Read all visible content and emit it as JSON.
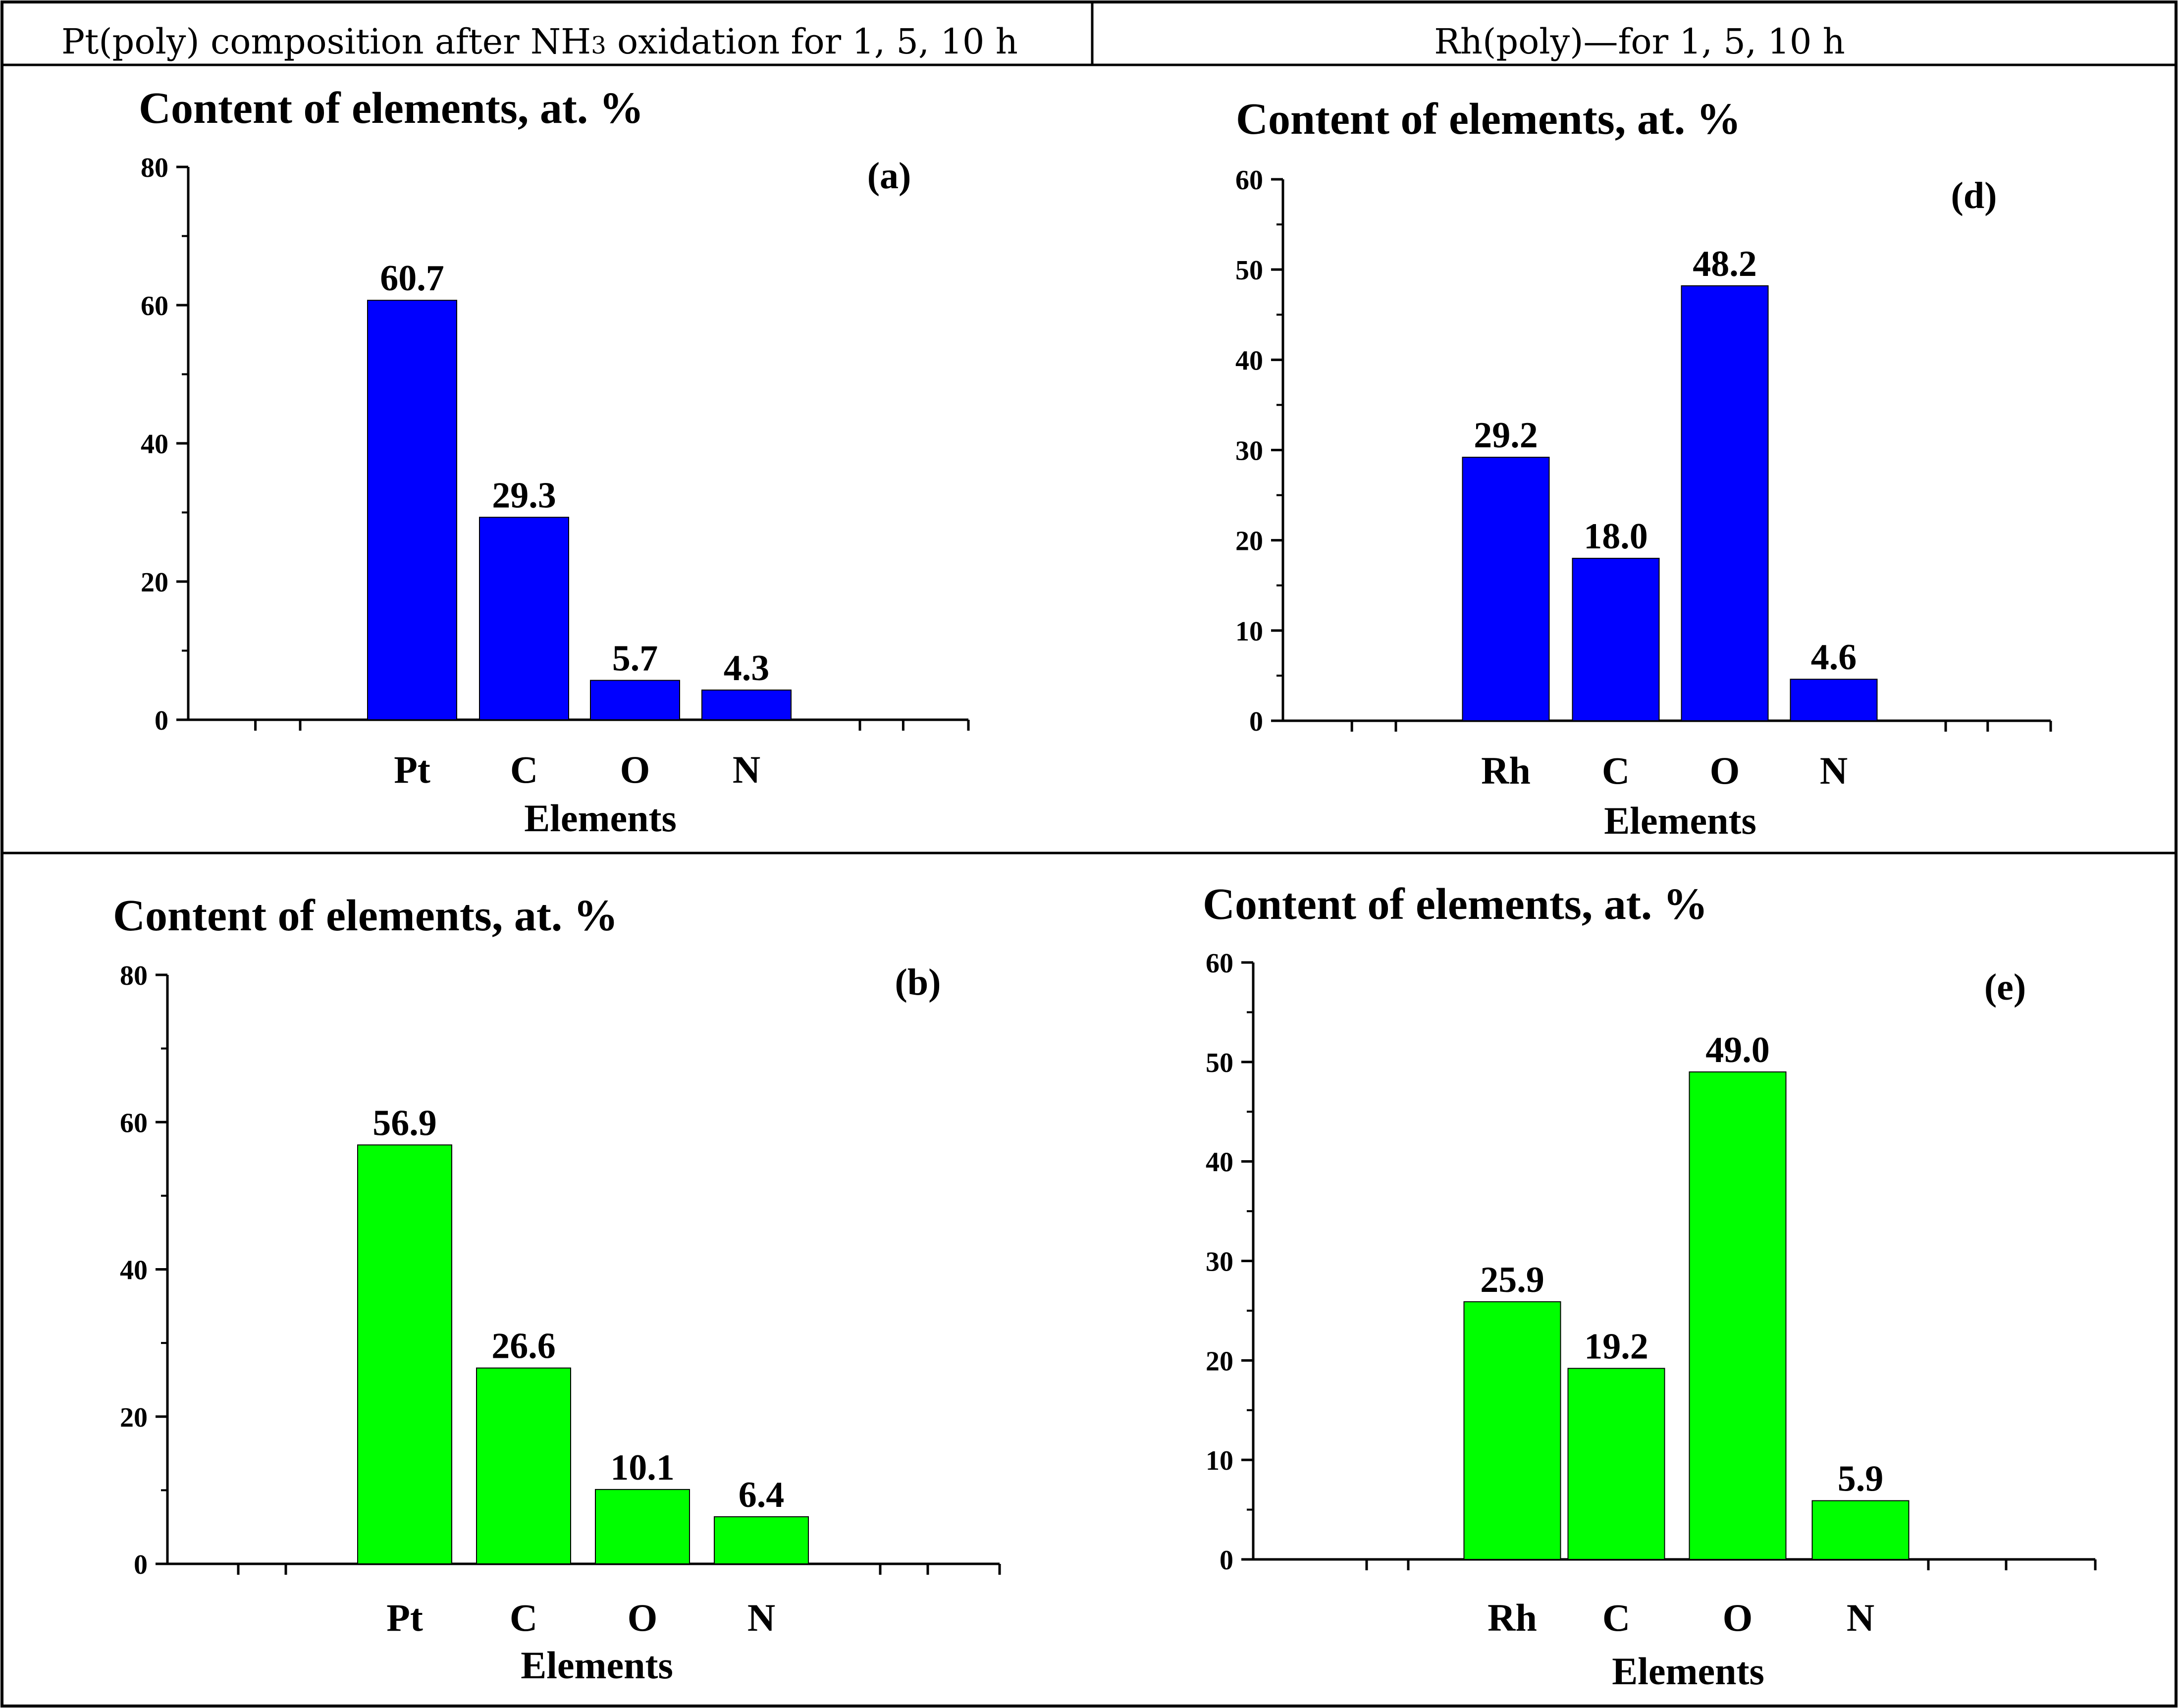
{
  "header": {
    "left_prefix": "Pt(poly) composition after NH",
    "left_sub": "3",
    "left_suffix": " oxidation for 1, 5, 10 h",
    "right": "Rh(poly)—for 1, 5, 10 h"
  },
  "colors": {
    "blue": "#0000ff",
    "green": "#00ff00",
    "axis": "#000000",
    "border": "#000000"
  },
  "chart_data": [
    {
      "id": "a",
      "panel_label": "(a)",
      "type": "bar",
      "title": "Content of elements, at. %",
      "xlabel": "Elements",
      "ylabel": "",
      "categories": [
        "Pt",
        "C",
        "O",
        "N"
      ],
      "values": [
        60.7,
        29.3,
        5.7,
        4.3
      ],
      "value_labels": [
        "60.7",
        "29.3",
        "5.7",
        "4.3"
      ],
      "ylim": [
        0,
        80
      ],
      "yticks": [
        "0",
        "20",
        "40",
        "60",
        "80"
      ],
      "color": "#0000ff"
    },
    {
      "id": "d",
      "panel_label": "(d)",
      "type": "bar",
      "title": "Content of elements, at. %",
      "xlabel": "Elements",
      "ylabel": "",
      "categories": [
        "Rh",
        "C",
        "O",
        "N"
      ],
      "values": [
        29.2,
        18.0,
        48.2,
        4.6
      ],
      "value_labels": [
        "29.2",
        "18.0",
        "48.2",
        "4.6"
      ],
      "ylim": [
        0,
        60
      ],
      "yticks": [
        "0",
        "10",
        "20",
        "30",
        "40",
        "50",
        "60"
      ],
      "color": "#0000ff"
    },
    {
      "id": "b",
      "panel_label": "(b)",
      "type": "bar",
      "title": "Content of elements, at. %",
      "xlabel": "Elements",
      "ylabel": "",
      "categories": [
        "Pt",
        "C",
        "O",
        "N"
      ],
      "values": [
        56.9,
        26.6,
        10.1,
        6.4
      ],
      "value_labels": [
        "56.9",
        "26.6",
        "10.1",
        "6.4"
      ],
      "ylim": [
        0,
        80
      ],
      "yticks": [
        "0",
        "20",
        "40",
        "60",
        "80"
      ],
      "color": "#00ff00"
    },
    {
      "id": "e",
      "panel_label": "(e)",
      "type": "bar",
      "title": "Content of elements, at. %",
      "xlabel": "Elements",
      "ylabel": "",
      "categories": [
        "Rh",
        "C",
        "O",
        "N"
      ],
      "values": [
        25.9,
        19.2,
        49.0,
        5.9
      ],
      "value_labels": [
        "25.9",
        "19.2",
        "49.0",
        "5.9"
      ],
      "ylim": [
        0,
        60
      ],
      "yticks": [
        "0",
        "10",
        "20",
        "30",
        "40",
        "50",
        "60"
      ],
      "color": "#00ff00"
    }
  ]
}
